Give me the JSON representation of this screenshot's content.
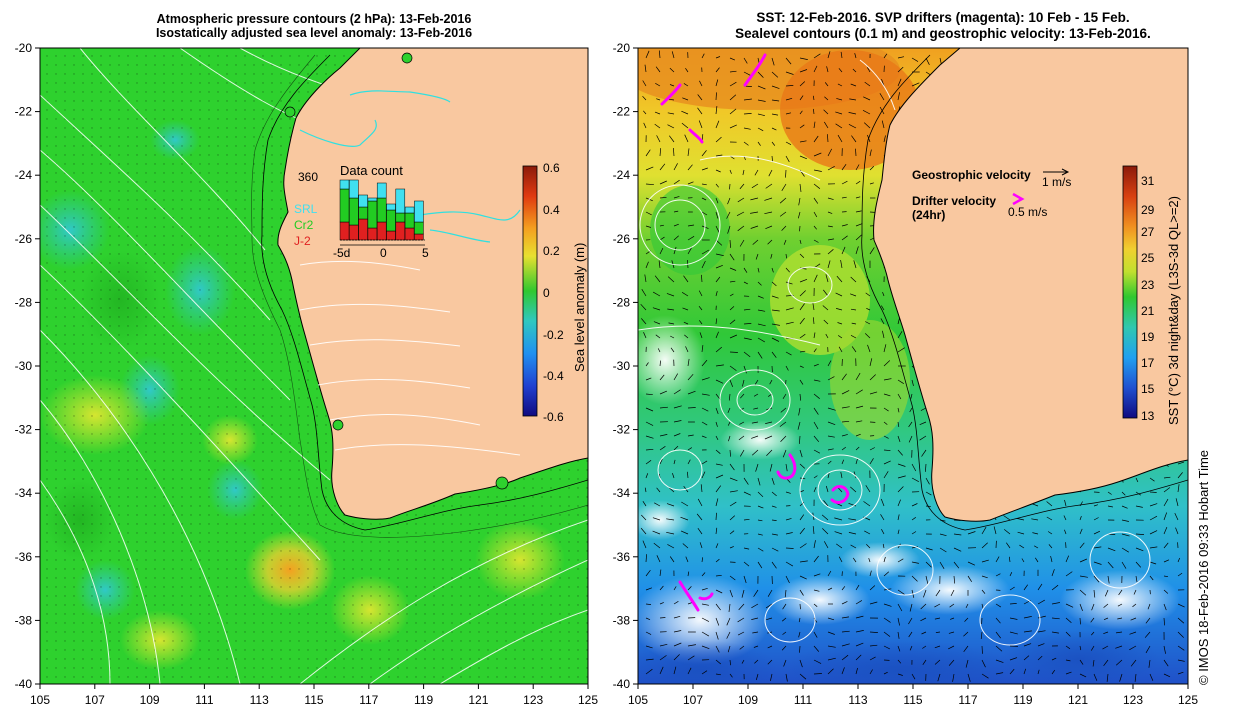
{
  "left_panel": {
    "title_line1": "Atmospheric pressure contours (2 hPa): 13-Feb-2016",
    "title_line2": "Isostatically adjusted sea level anomaly: 13-Feb-2016",
    "colorbar": {
      "label": "Sea level anomaly (m)",
      "ticks": [
        "0.6",
        "0.4",
        "0.2",
        "0",
        "-0.2",
        "-0.4",
        "-0.6"
      ]
    },
    "inset": {
      "title": "Data count",
      "max_label": "360",
      "legend": [
        "SRL",
        "Cr2",
        "J-2"
      ],
      "legend_colors": [
        "#40e0f0",
        "#22cc22",
        "#e02020"
      ],
      "xticks": [
        "-5d",
        "0",
        "5"
      ],
      "bars": [
        {
          "j2": 0.3,
          "cr2": 0.55,
          "srl": 0.15
        },
        {
          "j2": 0.25,
          "cr2": 0.45,
          "srl": 0.3
        },
        {
          "j2": 0.35,
          "cr2": 0.2,
          "srl": 0.2
        },
        {
          "j2": 0.2,
          "cr2": 0.45,
          "srl": 0.05
        },
        {
          "j2": 0.3,
          "cr2": 0.4,
          "srl": 0.25
        },
        {
          "j2": 0.15,
          "cr2": 0.35,
          "srl": 0.1
        },
        {
          "j2": 0.3,
          "cr2": 0.15,
          "srl": 0.4
        },
        {
          "j2": 0.2,
          "cr2": 0.25,
          "srl": 0.1
        },
        {
          "j2": 0.1,
          "cr2": 0.2,
          "srl": 0.35
        }
      ]
    }
  },
  "right_panel": {
    "title_line1": "SST: 12-Feb-2016. SVP drifters (magenta): 10 Feb - 15 Feb.",
    "title_line2": "Sealevel contours (0.1 m) and geostrophic velocity: 13-Feb-2016.",
    "colorbar": {
      "label": "SST (°C) 3d night&day (L3S-3d QL>=2)",
      "ticks": [
        "31",
        "29",
        "27",
        "25",
        "23",
        "21",
        "19",
        "17",
        "15",
        "13"
      ]
    },
    "legend": {
      "geo_label": "Geostrophic velocity",
      "geo_scale": "1 m/s",
      "drifter_label": "Drifter velocity",
      "drifter_sub": "(24hr)",
      "drifter_scale": "0.5 m/s"
    }
  },
  "axes": {
    "lat_ticks": [
      "-20",
      "-22",
      "-24",
      "-26",
      "-28",
      "-30",
      "-32",
      "-34",
      "-36",
      "-38",
      "-40"
    ],
    "lon_ticks": [
      "105",
      "107",
      "109",
      "111",
      "113",
      "115",
      "117",
      "119",
      "121",
      "123",
      "125"
    ]
  },
  "credit": "© IMOS 18-Feb-2016 09:33 Hobart Time",
  "colors": {
    "land": "#f9c8a0",
    "sea_green": "#2ed12e",
    "coast": "#000000",
    "drifter": "#ff00ff",
    "cyan_contour": "#30e0e0"
  }
}
